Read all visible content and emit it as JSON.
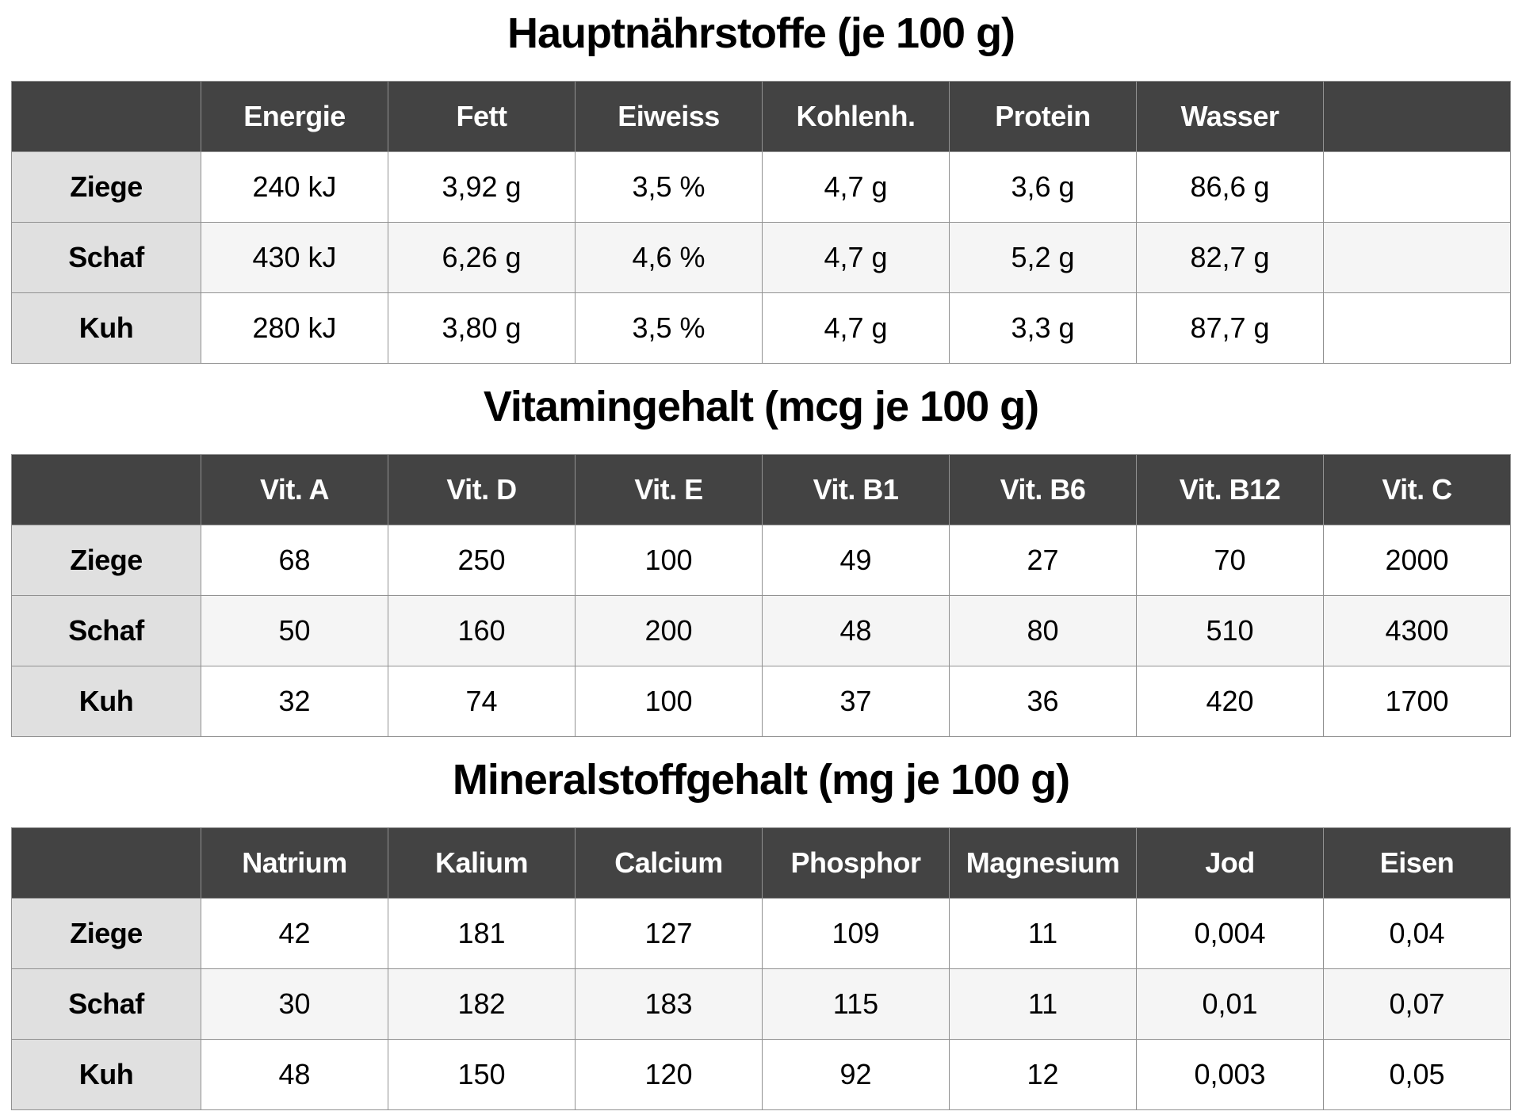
{
  "colors": {
    "header_bg": "#434343",
    "header_text": "#ffffff",
    "row_label_bg": "#e0e0e0",
    "row_alt_bg": "#f5f5f5",
    "grid_border": "#919191",
    "text": "#000000"
  },
  "sections": [
    {
      "title": "Hauptnährstoffe (je 100 g)",
      "columns": [
        "Energie",
        "Fett",
        "Eiweiss",
        "Kohlenh.",
        "Protein",
        "Wasser",
        ""
      ],
      "rows": [
        {
          "label": "Ziege",
          "cells": [
            "240 kJ",
            "3,92 g",
            "3,5 %",
            "4,7 g",
            "3,6 g",
            "86,6 g",
            ""
          ]
        },
        {
          "label": "Schaf",
          "cells": [
            "430 kJ",
            "6,26 g",
            "4,6 %",
            "4,7 g",
            "5,2 g",
            "82,7 g",
            ""
          ]
        },
        {
          "label": "Kuh",
          "cells": [
            "280 kJ",
            "3,80 g",
            "3,5 %",
            "4,7 g",
            "3,3 g",
            "87,7 g",
            ""
          ]
        }
      ]
    },
    {
      "title": "Vitamingehalt (mcg je 100 g)",
      "columns": [
        "Vit. A",
        "Vit. D",
        "Vit. E",
        "Vit. B1",
        "Vit. B6",
        "Vit. B12",
        "Vit. C"
      ],
      "rows": [
        {
          "label": "Ziege",
          "cells": [
            "68",
            "250",
            "100",
            "49",
            "27",
            "70",
            "2000"
          ]
        },
        {
          "label": "Schaf",
          "cells": [
            "50",
            "160",
            "200",
            "48",
            "80",
            "510",
            "4300"
          ]
        },
        {
          "label": "Kuh",
          "cells": [
            "32",
            "74",
            "100",
            "37",
            "36",
            "420",
            "1700"
          ]
        }
      ]
    },
    {
      "title": "Mineralstoffgehalt (mg je 100 g)",
      "columns": [
        "Natrium",
        "Kalium",
        "Calcium",
        "Phosphor",
        "Magnesium",
        "Jod",
        "Eisen"
      ],
      "rows": [
        {
          "label": "Ziege",
          "cells": [
            "42",
            "181",
            "127",
            "109",
            "11",
            "0,004",
            "0,04"
          ]
        },
        {
          "label": "Schaf",
          "cells": [
            "30",
            "182",
            "183",
            "115",
            "11",
            "0,01",
            "0,07"
          ]
        },
        {
          "label": "Kuh",
          "cells": [
            "48",
            "150",
            "120",
            "92",
            "12",
            "0,003",
            "0,05"
          ]
        }
      ]
    }
  ]
}
